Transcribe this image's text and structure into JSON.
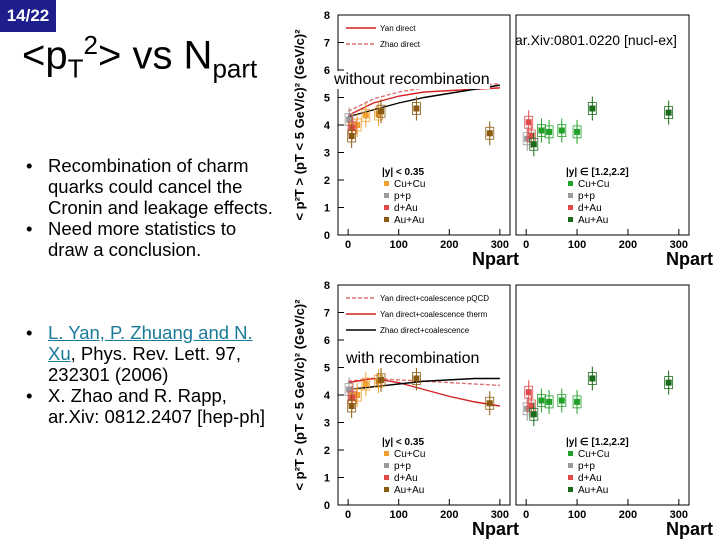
{
  "slide": {
    "page_number": "14/22",
    "title_parts": {
      "t1": "<p",
      "sub1": "T",
      "sup1": "2",
      "t2": "> vs N",
      "sub2": "part"
    },
    "bullets_group1": [
      "Recombination of charm quarks could cancel the Cronin and leakage effects.",
      "Need more statistics to draw a conclusion."
    ],
    "reference1": {
      "link_text": "L. Yan, P. Zhuang and N. Xu",
      "rest": ", Phys. Rev. Lett. 97, 232301 (2006)"
    },
    "reference2": "X. Zhao and R. Rapp, ar.Xiv: 0812.2407 [hep-ph]",
    "arxiv_label": "ar.Xiv:0801.0220 [nucl-ex]"
  },
  "chart_data": [
    {
      "type": "scatter",
      "panel_label": "without recombination",
      "ylabel": "< p²T > (pT < 5 GeV/c)² (GeV/c)²",
      "xlabel": "Npart",
      "ylim": [
        0,
        8
      ],
      "yticks": [
        "0",
        "1",
        "2",
        "3",
        "4",
        "5",
        "6",
        "7",
        "8"
      ],
      "xlim": [
        -20,
        320
      ],
      "xticks": [
        "0",
        "100",
        "200",
        "300"
      ],
      "legend": {
        "lines": [
          "Yan direct",
          "Zhao direct"
        ]
      },
      "midrapidity": {
        "label": "|y| < 0.35",
        "entries": [
          "Cu+Cu",
          "p+p",
          "d+Au",
          "Au+Au"
        ],
        "series": [
          {
            "name": "Cu+Cu",
            "color": "#f0a030",
            "x": [
              8,
              18,
              35,
              60
            ],
            "y": [
              4.0,
              4.0,
              4.35,
              4.4
            ]
          },
          {
            "name": "p+p",
            "color": "#999999",
            "x": [
              2
            ],
            "y": [
              4.2
            ]
          },
          {
            "name": "d+Au",
            "color": "#e04a4a",
            "x": [
              8
            ],
            "y": [
              3.9
            ]
          },
          {
            "name": "Au+Au",
            "color": "#8a5a10",
            "x": [
              7,
              65,
              135,
              280
            ],
            "y": [
              3.6,
              4.5,
              4.6,
              3.7
            ]
          }
        ],
        "curves": [
          {
            "name": "Yan direct",
            "color": "#d42020",
            "dashed": false,
            "x": [
              0,
              50,
              100,
              150,
              200,
              250,
              300
            ],
            "y": [
              4.35,
              4.8,
              5.05,
              5.2,
              5.25,
              5.3,
              5.35
            ]
          },
          {
            "name": "Yan direct band",
            "color": "#e07070",
            "dashed": true,
            "x": [
              0,
              50,
              100,
              150,
              200,
              250,
              300
            ],
            "y": [
              4.5,
              4.95,
              5.2,
              5.35,
              5.4,
              5.45,
              5.5
            ]
          },
          {
            "name": "Zhao direct",
            "color": "#000000",
            "dashed": false,
            "x": [
              0,
              50,
              100,
              150,
              200,
              250,
              300
            ],
            "y": [
              4.3,
              4.55,
              4.8,
              5.0,
              5.15,
              5.3,
              5.45
            ]
          }
        ]
      },
      "forward": {
        "label": "|y| ∈ [1.2,2.2]",
        "entries": [
          "Cu+Cu",
          "p+p",
          "d+Au",
          "Au+Au"
        ],
        "series": [
          {
            "name": "Cu+Cu",
            "color": "#22a02a",
            "x": [
              30,
              45,
              70,
              100
            ],
            "y": [
              3.8,
              3.75,
              3.8,
              3.75
            ]
          },
          {
            "name": "p+p",
            "color": "#999999",
            "x": [
              2
            ],
            "y": [
              3.5
            ]
          },
          {
            "name": "d+Au",
            "color": "#e04a4a",
            "x": [
              5,
              10
            ],
            "y": [
              4.1,
              3.6
            ]
          },
          {
            "name": "Au+Au",
            "color": "#1a6a1a",
            "x": [
              15,
              130,
              280
            ],
            "y": [
              3.3,
              4.6,
              4.45
            ]
          }
        ]
      }
    },
    {
      "type": "scatter",
      "panel_label": "with recombination",
      "ylabel": "< p²T > (pT < 5 GeV/c)² (GeV/c)²",
      "xlabel": "Npart",
      "ylim": [
        0,
        8
      ],
      "yticks": [
        "0",
        "1",
        "2",
        "3",
        "4",
        "5",
        "6",
        "7",
        "8"
      ],
      "xlim": [
        -20,
        320
      ],
      "xticks": [
        "0",
        "100",
        "200",
        "300"
      ],
      "legend": {
        "lines": [
          "Yan direct+coalescence pQCD",
          "Yan direct+coalescence therm",
          "Zhao direct+coalescence"
        ]
      },
      "midrapidity": {
        "label": "|y| < 0.35",
        "entries": [
          "Cu+Cu",
          "p+p",
          "d+Au",
          "Au+Au"
        ],
        "series": [
          {
            "name": "Cu+Cu",
            "color": "#f0a030",
            "x": [
              8,
              18,
              35,
              60
            ],
            "y": [
              4.0,
              4.0,
              4.4,
              4.5
            ]
          },
          {
            "name": "p+p",
            "color": "#999999",
            "x": [
              2
            ],
            "y": [
              4.2
            ]
          },
          {
            "name": "d+Au",
            "color": "#e04a4a",
            "x": [
              8
            ],
            "y": [
              3.9
            ]
          },
          {
            "name": "Au+Au",
            "color": "#8a5a10",
            "x": [
              7,
              65,
              135,
              280
            ],
            "y": [
              3.6,
              4.55,
              4.6,
              3.7
            ]
          }
        ],
        "curves": [
          {
            "name": "Yan direct+coalescence pQCD",
            "color": "#e07070",
            "dashed": true,
            "x": [
              0,
              50,
              100,
              150,
              200,
              250,
              300
            ],
            "y": [
              4.5,
              4.6,
              4.55,
              4.5,
              4.45,
              4.4,
              4.35
            ]
          },
          {
            "name": "Yan direct+coalescence therm",
            "color": "#d42020",
            "dashed": false,
            "x": [
              0,
              50,
              100,
              150,
              200,
              250,
              300
            ],
            "y": [
              4.45,
              4.6,
              4.45,
              4.2,
              3.95,
              3.75,
              3.6
            ]
          },
          {
            "name": "Zhao direct+coalescence",
            "color": "#000000",
            "dashed": false,
            "x": [
              0,
              50,
              100,
              150,
              200,
              250,
              300
            ],
            "y": [
              4.2,
              4.3,
              4.4,
              4.5,
              4.55,
              4.6,
              4.6
            ]
          }
        ]
      },
      "forward": {
        "label": "|y| ∈ [1.2,2.2]",
        "entries": [
          "Cu+Cu",
          "p+p",
          "d+Au",
          "Au+Au"
        ],
        "series": [
          {
            "name": "Cu+Cu",
            "color": "#22a02a",
            "x": [
              30,
              45,
              70,
              100
            ],
            "y": [
              3.8,
              3.75,
              3.8,
              3.75
            ]
          },
          {
            "name": "p+p",
            "color": "#999999",
            "x": [
              2
            ],
            "y": [
              3.5
            ]
          },
          {
            "name": "d+Au",
            "color": "#e04a4a",
            "x": [
              5,
              10
            ],
            "y": [
              4.1,
              3.6
            ]
          },
          {
            "name": "Au+Au",
            "color": "#1a6a1a",
            "x": [
              15,
              130,
              280
            ],
            "y": [
              3.3,
              4.6,
              4.45
            ]
          }
        ]
      }
    }
  ]
}
